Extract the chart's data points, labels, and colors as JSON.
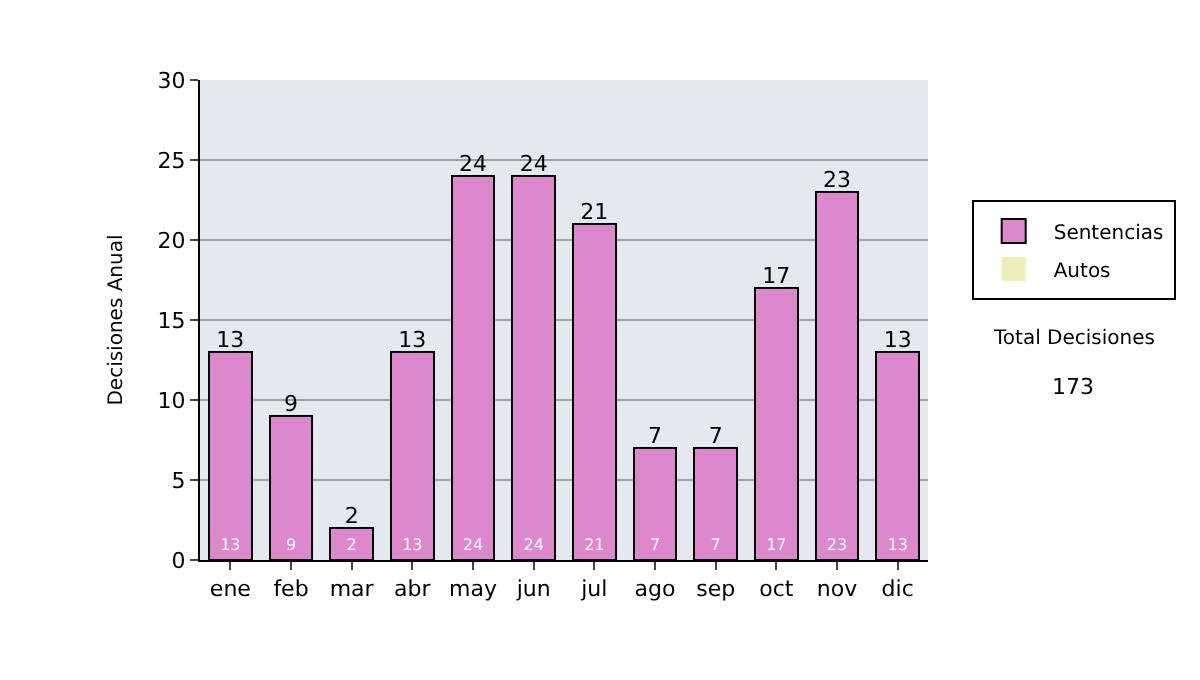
{
  "chart_data": {
    "type": "bar",
    "stacked": true,
    "ylabel": "Decisiones Anual",
    "categories": [
      "ene",
      "feb",
      "mar",
      "abr",
      "may",
      "jun",
      "jul",
      "ago",
      "sep",
      "oct",
      "nov",
      "dic"
    ],
    "series": [
      {
        "name": "Sentencias",
        "color": "#dd88cc",
        "values": [
          13,
          9,
          2,
          13,
          24,
          24,
          21,
          7,
          7,
          17,
          23,
          13
        ],
        "value_labels": [
          "13",
          "9",
          "2",
          "13",
          "24",
          "24",
          "21",
          "7",
          "7",
          "17",
          "23",
          "13"
        ]
      },
      {
        "name": "Autos",
        "color": "#eeeebb",
        "values": [
          0,
          0,
          0,
          0,
          0,
          0,
          0,
          0,
          0,
          0,
          0,
          0
        ]
      }
    ],
    "totals": [
      "13",
      "9",
      "2",
      "13",
      "24",
      "24",
      "21",
      "7",
      "7",
      "17",
      "23",
      "13"
    ],
    "ylim": [
      0,
      30
    ],
    "yticks": [
      0,
      5,
      10,
      15,
      20,
      25,
      30
    ],
    "grid": "y",
    "legend": "right",
    "annotations": [
      "Total Decisiones",
      "173"
    ]
  }
}
